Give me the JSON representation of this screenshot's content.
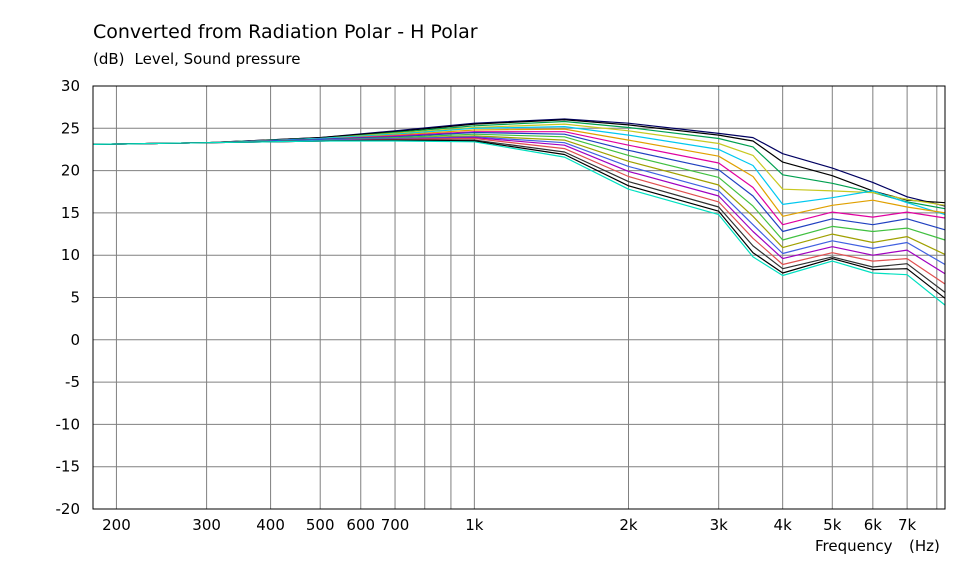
{
  "title": "Converted from Radiation Polar - H Polar",
  "y_unit": "(dB)",
  "y_label": "Level, Sound pressure",
  "x_label": "Frequency",
  "x_unit": "(Hz)",
  "chart_data": {
    "type": "line",
    "title": "Converted from Radiation Polar - H Polar",
    "ylabel": "Level, Sound pressure (dB)",
    "xlabel": "Frequency (Hz)",
    "x_scale": "log",
    "xlim": [
      180,
      8300
    ],
    "ylim": [
      -20,
      30
    ],
    "y_ticks": [
      30,
      25,
      20,
      15,
      10,
      5,
      0,
      -5,
      -10,
      -15,
      -20
    ],
    "x_ticks": [
      {
        "value": 200,
        "label": "200"
      },
      {
        "value": 300,
        "label": "300"
      },
      {
        "value": 400,
        "label": "400"
      },
      {
        "value": 500,
        "label": "500"
      },
      {
        "value": 600,
        "label": "600"
      },
      {
        "value": 700,
        "label": "700"
      },
      {
        "value": 1000,
        "label": "1k"
      },
      {
        "value": 2000,
        "label": "2k"
      },
      {
        "value": 3000,
        "label": "3k"
      },
      {
        "value": 4000,
        "label": "4k"
      },
      {
        "value": 5000,
        "label": "5k"
      },
      {
        "value": 6000,
        "label": "6k"
      },
      {
        "value": 7000,
        "label": "7k"
      }
    ],
    "grid": true,
    "legend": "none",
    "x": [
      180,
      300,
      500,
      700,
      1000,
      1500,
      2000,
      3000,
      3500,
      4000,
      5000,
      6000,
      7000,
      8300
    ],
    "series": [
      {
        "color": "#000060",
        "values": [
          23.1,
          23.3,
          23.9,
          24.7,
          25.6,
          26.1,
          25.6,
          24.4,
          23.9,
          22.0,
          20.3,
          18.6,
          16.9,
          15.8
        ]
      },
      {
        "color": "#000000",
        "values": [
          23.1,
          23.3,
          23.9,
          24.6,
          25.5,
          26.0,
          25.4,
          24.2,
          23.5,
          21.0,
          19.4,
          17.6,
          16.5,
          16.2
        ]
      },
      {
        "color": "#00a050",
        "values": [
          23.1,
          23.3,
          23.8,
          24.5,
          25.3,
          25.8,
          25.1,
          23.8,
          22.8,
          19.5,
          18.5,
          17.4,
          16.3,
          15.5
        ]
      },
      {
        "color": "#c8c820",
        "values": [
          23.1,
          23.3,
          23.8,
          24.4,
          25.1,
          25.5,
          24.7,
          23.2,
          21.8,
          17.8,
          17.6,
          17.4,
          16.6,
          15.9
        ]
      },
      {
        "color": "#00c8f0",
        "values": [
          23.1,
          23.3,
          23.8,
          24.3,
          25.0,
          25.2,
          24.2,
          22.5,
          20.6,
          16.0,
          16.8,
          17.6,
          16.2,
          14.8
        ]
      },
      {
        "color": "#e0a000",
        "values": [
          23.1,
          23.3,
          23.7,
          24.2,
          24.8,
          24.9,
          23.6,
          21.7,
          19.3,
          14.6,
          15.9,
          16.5,
          15.7,
          15.0
        ]
      },
      {
        "color": "#e000a0",
        "values": [
          23.1,
          23.3,
          23.7,
          24.1,
          24.6,
          24.6,
          23.0,
          20.9,
          18.0,
          13.6,
          15.1,
          14.5,
          15.1,
          14.4
        ]
      },
      {
        "color": "#2040c0",
        "values": [
          23.1,
          23.3,
          23.7,
          24.0,
          24.5,
          24.3,
          22.4,
          20.1,
          17.0,
          12.8,
          14.3,
          13.6,
          14.3,
          13.0
        ]
      },
      {
        "color": "#40c040",
        "values": [
          23.1,
          23.3,
          23.6,
          23.9,
          24.3,
          24.0,
          21.8,
          19.2,
          15.8,
          11.8,
          13.4,
          12.8,
          13.2,
          11.8
        ]
      },
      {
        "color": "#a0a000",
        "values": [
          23.1,
          23.3,
          23.6,
          23.8,
          24.1,
          23.6,
          21.1,
          18.3,
          14.6,
          10.9,
          12.5,
          11.5,
          12.2,
          10.1
        ]
      },
      {
        "color": "#4060e0",
        "values": [
          23.1,
          23.3,
          23.6,
          23.8,
          24.0,
          23.3,
          20.5,
          17.6,
          13.6,
          10.2,
          11.7,
          10.8,
          11.5,
          8.9
        ]
      },
      {
        "color": "#a000c0",
        "values": [
          23.1,
          23.3,
          23.5,
          23.7,
          23.9,
          23.0,
          19.9,
          17.0,
          12.8,
          9.6,
          11.0,
          10.0,
          10.6,
          7.8
        ]
      },
      {
        "color": "#e05050",
        "values": [
          23.1,
          23.3,
          23.5,
          23.7,
          23.8,
          22.6,
          19.3,
          16.3,
          12.0,
          8.9,
          10.3,
          9.3,
          9.6,
          6.6
        ]
      },
      {
        "color": "#303030",
        "values": [
          23.1,
          23.3,
          23.5,
          23.6,
          23.6,
          22.2,
          18.7,
          15.7,
          11.1,
          8.4,
          9.8,
          8.6,
          9.0,
          5.6
        ]
      },
      {
        "color": "#000000",
        "values": [
          23.1,
          23.3,
          23.5,
          23.6,
          23.5,
          21.9,
          18.2,
          15.2,
          10.3,
          7.9,
          9.6,
          8.3,
          8.4,
          4.9
        ]
      },
      {
        "color": "#00e0c0",
        "values": [
          23.1,
          23.3,
          23.5,
          23.5,
          23.4,
          21.6,
          17.8,
          14.8,
          9.8,
          7.6,
          9.3,
          7.9,
          7.7,
          4.1
        ]
      }
    ]
  }
}
